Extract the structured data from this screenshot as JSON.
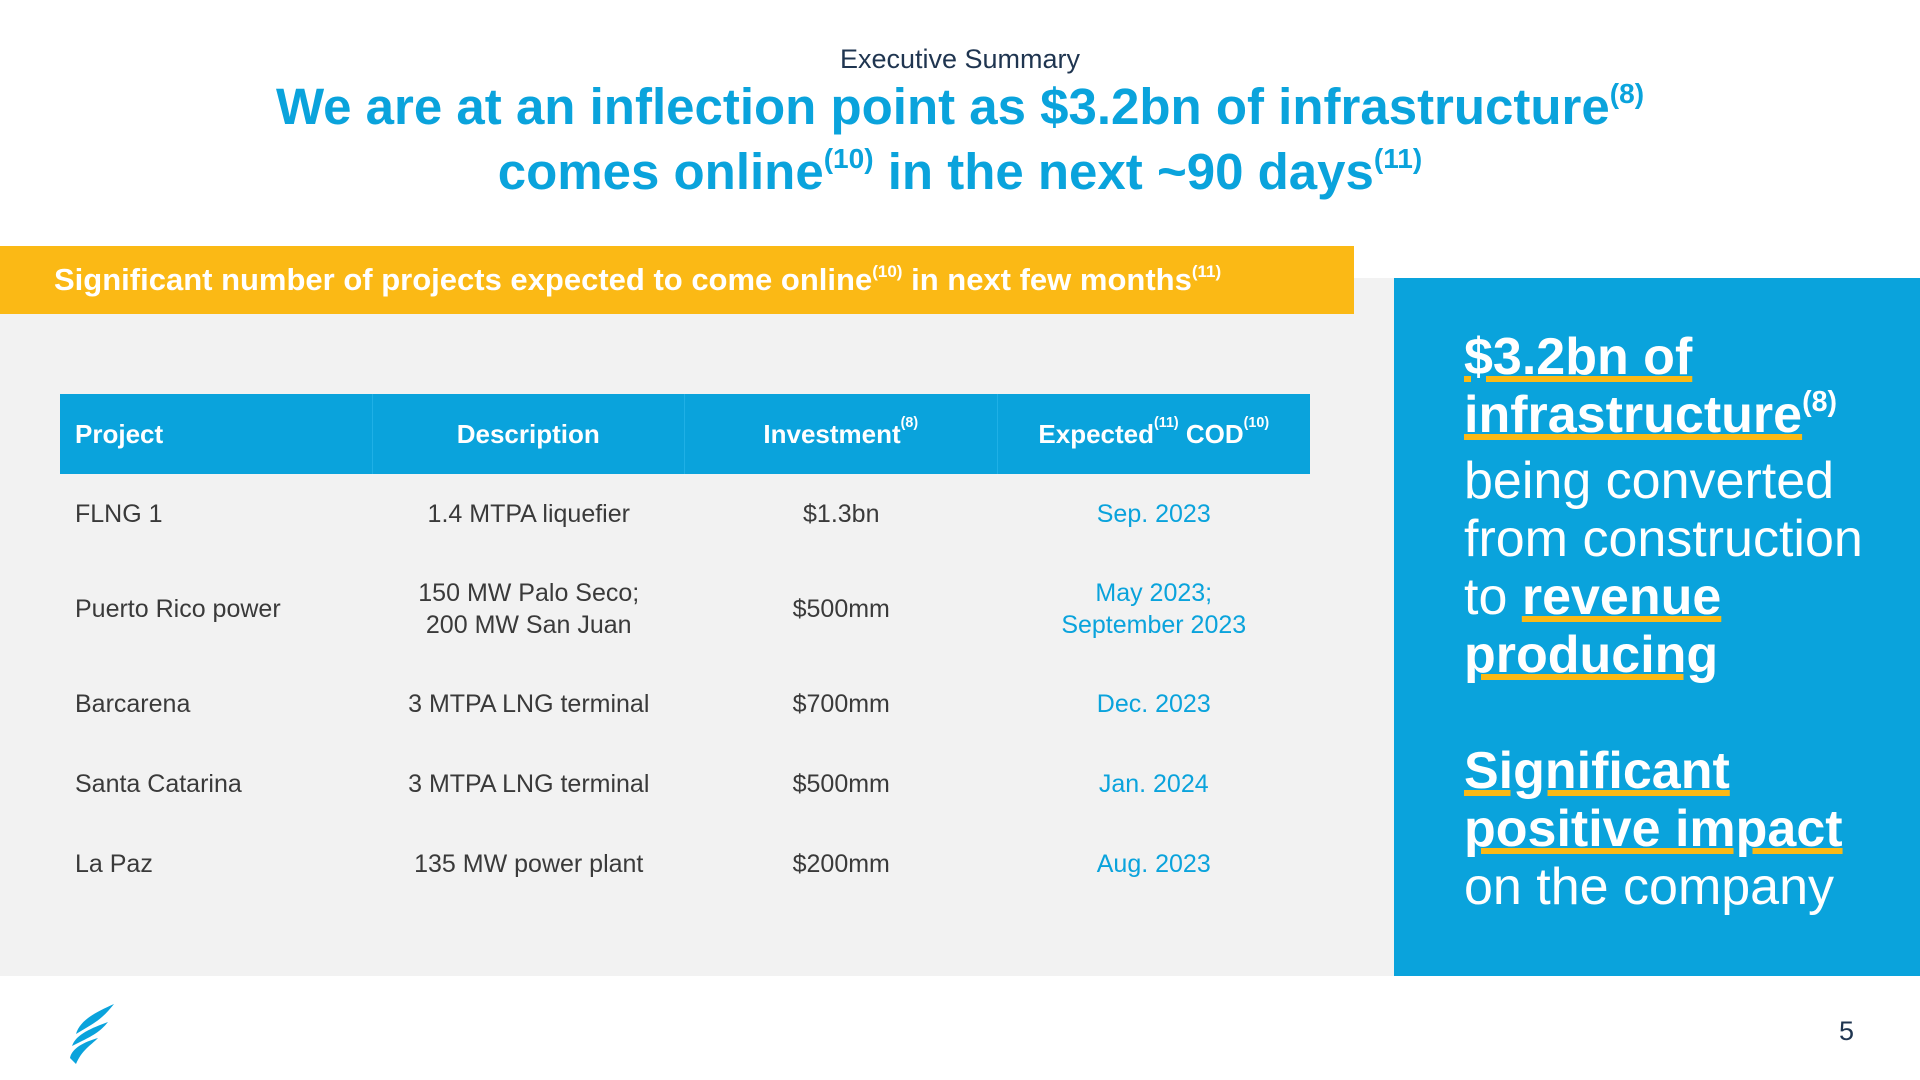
{
  "header": {
    "eyebrow": "Executive Summary",
    "title_line1": "We are at an inflection point as $3.2bn of infrastructure",
    "title_sup1": "(8)",
    "title_line2a": "comes online",
    "title_sup2": "(10)",
    "title_line2b": " in the next ~90 days",
    "title_sup3": "(11)"
  },
  "banner": {
    "text_a": "Significant number of projects expected to come online",
    "sup_a": "(10)",
    "text_b": " in next few months",
    "sup_b": "(11)"
  },
  "table": {
    "headers": {
      "project": "Project",
      "description": "Description",
      "investment": "Investment",
      "investment_sup": "(8)",
      "expected": "Expected",
      "expected_sup": "(11)",
      "cod": " COD",
      "cod_sup": "(10)"
    },
    "rows": [
      {
        "project": "FLNG 1",
        "description_l1": "1.4 MTPA liquefier",
        "description_l2": "",
        "investment": "$1.3bn",
        "cod_l1": "Sep. 2023",
        "cod_l2": ""
      },
      {
        "project": "Puerto Rico power",
        "description_l1": "150 MW Palo Seco;",
        "description_l2": "200 MW San Juan",
        "investment": "$500mm",
        "cod_l1": "May 2023;",
        "cod_l2": "September 2023"
      },
      {
        "project": "Barcarena",
        "description_l1": "3 MTPA LNG terminal",
        "description_l2": "",
        "investment": "$700mm",
        "cod_l1": "Dec. 2023",
        "cod_l2": ""
      },
      {
        "project": "Santa Catarina",
        "description_l1": "3 MTPA LNG terminal",
        "description_l2": "",
        "investment": "$500mm",
        "cod_l1": "Jan. 2024",
        "cod_l2": ""
      },
      {
        "project": "La Paz",
        "description_l1": "135 MW power plant",
        "description_l2": "",
        "investment": "$200mm",
        "cod_l1": "Aug. 2023",
        "cod_l2": ""
      }
    ]
  },
  "callout": {
    "p1_hl1": "$3.2bn of",
    "p1_hl2": "infrastructure",
    "p1_sup": "(8)",
    "p1_text": "being converted from construction to ",
    "p1_hl3": "revenue producing",
    "p2_hl": "Significant positive impact",
    "p2_text": " on the company"
  },
  "footer": {
    "logo_icon": "company-flame-logo-icon",
    "page_number": "5"
  },
  "colors": {
    "brand_blue": "#0aa3dc",
    "accent_yellow": "#fbb915",
    "panel_gray": "#f2f2f2"
  }
}
